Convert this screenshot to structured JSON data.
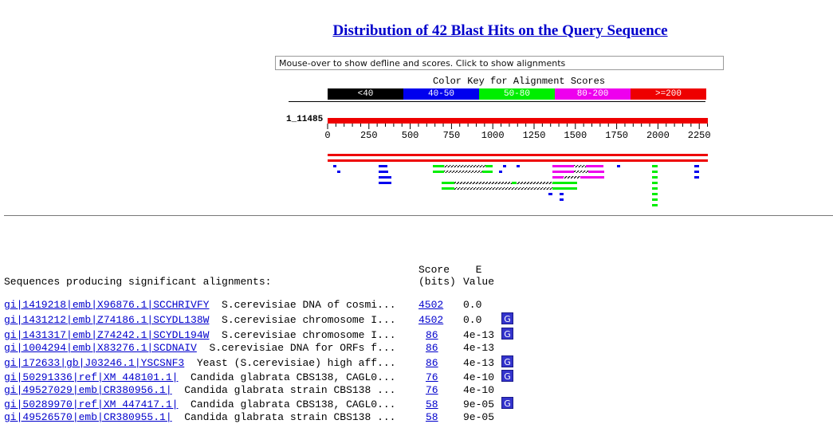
{
  "title": "Distribution of 42 Blast Hits on the Query Sequence",
  "mouseover_text": "Mouse-over to show defline and scores. Click to show alignments",
  "color_key": {
    "title": "Color Key for Alignment Scores",
    "bins": [
      {
        "label": "<40",
        "color": "#000000"
      },
      {
        "label": "40-50",
        "color": "#0000ee"
      },
      {
        "label": "50-80",
        "color": "#00ee00"
      },
      {
        "label": "80-200",
        "color": "#ee00ee"
      },
      {
        "label": ">=200",
        "color": "#ee0000"
      }
    ]
  },
  "query_label": "1_11485",
  "axis_ticks": [
    "0",
    "250",
    "500",
    "750",
    "1000",
    "1250",
    "1500",
    "1750",
    "2000",
    "2250"
  ],
  "table": {
    "header_sequences": "Sequences producing significant alignments:",
    "header_score": "Score\n(bits)",
    "header_evalue": "  E\nValue",
    "rows": [
      {
        "id": "gi|1419218|emb|X96876.1|SCCHRIVFY",
        "desc": "  S.cerevisiae DNA of cosmi...",
        "score": "4502",
        "evalue": "0.0",
        "g": false
      },
      {
        "id": "gi|1431212|emb|Z74186.1|SCYDL138W",
        "desc": "  S.cerevisiae chromosome I...",
        "score": "4502",
        "evalue": "0.0",
        "g": true
      },
      {
        "id": "gi|1431317|emb|Z74242.1|SCYDL194W",
        "desc": "  S.cerevisiae chromosome I...",
        "score": "86",
        "evalue": "4e-13",
        "g": true
      },
      {
        "id": "gi|1004294|emb|X83276.1|SCDNAIV",
        "desc": "  S.cerevisiae DNA for ORFs f...",
        "score": "86",
        "evalue": "4e-13",
        "g": false
      },
      {
        "id": "gi|172633|gb|J03246.1|YSCSNF3",
        "desc": "  Yeast (S.cerevisiae) high aff...",
        "score": "86",
        "evalue": "4e-13",
        "g": true
      },
      {
        "id": "gi|50291336|ref|XM_448101.1|",
        "desc": "  Candida glabrata CBS138, CAGL0...",
        "score": "76",
        "evalue": "4e-10",
        "g": true
      },
      {
        "id": "gi|49527029|emb|CR380956.1|",
        "desc": "  Candida glabrata strain CBS138 ...",
        "score": "76",
        "evalue": "4e-10",
        "g": false
      },
      {
        "id": "gi|50289970|ref|XM_447417.1|",
        "desc": "  Candida glabrata CBS138, CAGL0...",
        "score": "58",
        "evalue": "9e-05",
        "g": true
      },
      {
        "id": "gi|49526570|emb|CR380955.1|",
        "desc": "  Candida glabrata strain CBS138 ...",
        "score": "58",
        "evalue": "9e-05",
        "g": false
      }
    ],
    "g_label": "G"
  }
}
